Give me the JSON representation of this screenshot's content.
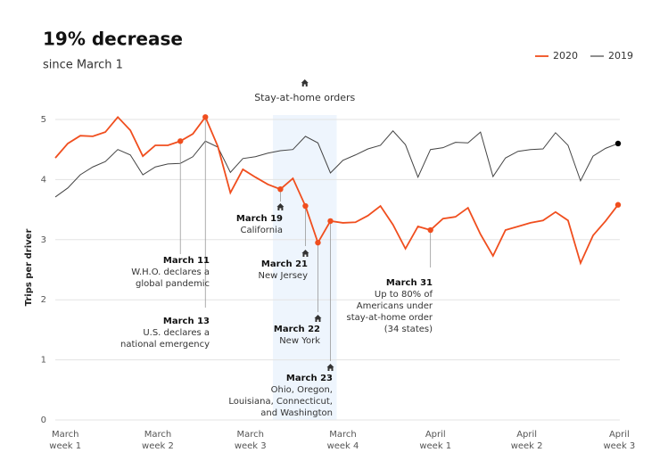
{
  "chart_data": {
    "type": "line",
    "title": "19% decrease",
    "subtitle": "since March 1",
    "ylabel": "Trips per driver",
    "xlim": [
      0,
      45
    ],
    "ylim": [
      0,
      5
    ],
    "yticks": [
      0,
      1,
      2,
      3,
      4,
      5
    ],
    "grid": true,
    "legend": "top-right",
    "xticks": [
      {
        "value": 0.8,
        "label": "March week 1"
      },
      {
        "value": 8.2,
        "label": "March week 2"
      },
      {
        "value": 15.6,
        "label": "March week 3"
      },
      {
        "value": 23,
        "label": "March week 4"
      },
      {
        "value": 30.4,
        "label": "April week 1"
      },
      {
        "value": 37.7,
        "label": "April week 2"
      },
      {
        "value": 45.1,
        "label": "April week 3"
      }
    ],
    "x": [
      0,
      1,
      2,
      3,
      4,
      5,
      6,
      7,
      8,
      9,
      10,
      11,
      12,
      13,
      14,
      15,
      16,
      17,
      18,
      19,
      20,
      21,
      22,
      23,
      24,
      25,
      26,
      27,
      28,
      29,
      30,
      31,
      32,
      33,
      34,
      35,
      36,
      37,
      38,
      39,
      40,
      41,
      42,
      43,
      44,
      45
    ],
    "series": [
      {
        "name": "2020",
        "color": "#f04e1e",
        "values": [
          4.36,
          4.6,
          4.73,
          4.72,
          4.79,
          5.04,
          4.82,
          4.39,
          4.57,
          4.57,
          4.64,
          4.76,
          5.04,
          4.55,
          3.78,
          4.17,
          4.04,
          3.92,
          3.84,
          4.02,
          3.56,
          2.95,
          3.31,
          3.28,
          3.29,
          3.4,
          3.56,
          3.25,
          2.85,
          3.22,
          3.16,
          3.35,
          3.38,
          3.53,
          3.09,
          2.73,
          3.16,
          3.22,
          3.28,
          3.32,
          3.46,
          3.32,
          2.61,
          3.07,
          3.31,
          3.58
        ]
      },
      {
        "name": "2019",
        "color": "#444444",
        "values": [
          3.71,
          3.86,
          4.08,
          4.21,
          4.3,
          4.5,
          4.41,
          4.08,
          4.21,
          4.26,
          4.27,
          4.38,
          4.64,
          4.54,
          4.12,
          4.35,
          4.38,
          4.44,
          4.48,
          4.5,
          4.72,
          4.61,
          4.11,
          4.32,
          4.41,
          4.51,
          4.57,
          4.81,
          4.58,
          4.04,
          4.5,
          4.53,
          4.62,
          4.61,
          4.79,
          4.05,
          4.36,
          4.47,
          4.5,
          4.51,
          4.78,
          4.57,
          3.98,
          4.39,
          4.52,
          4.6
        ]
      }
    ],
    "shaded_region": {
      "label": "Stay-at-home orders",
      "xlim": [
        17.4,
        22.5
      ]
    },
    "annotations": [
      {
        "x": 10,
        "date": "March 11",
        "lines": [
          "W.H.O. declares a",
          "global pandemic"
        ]
      },
      {
        "x": 12,
        "date": "March 13",
        "lines": [
          "U.S. declares a",
          "national emergency"
        ]
      },
      {
        "x": 18,
        "date": "March 19",
        "lines": [
          "California"
        ]
      },
      {
        "x": 20,
        "date": "March 21",
        "lines": [
          "New Jersey"
        ]
      },
      {
        "x": 21,
        "date": "March 22",
        "lines": [
          "New York"
        ]
      },
      {
        "x": 22,
        "date": "March 23",
        "lines": [
          "Ohio, Oregon,",
          "Louisiana, Connecticut,",
          "and Washington"
        ]
      },
      {
        "x": 30,
        "date": "March 31",
        "lines": [
          "Up to 80% of",
          "Americans under",
          "stay-at-home order",
          "(34 states)"
        ]
      }
    ]
  }
}
